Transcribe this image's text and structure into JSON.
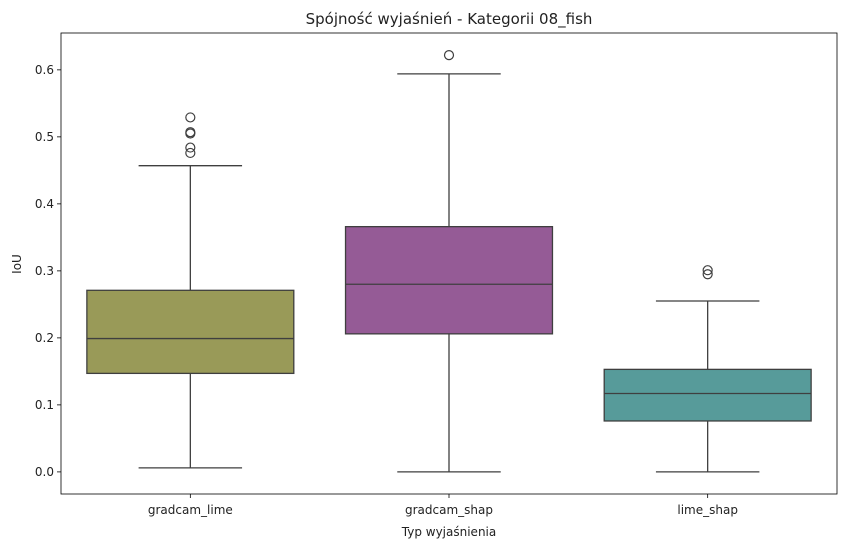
{
  "chart_data": {
    "type": "box",
    "title": "Spójność wyjaśnień - Kategorii 08_fish",
    "xlabel": "Typ wyjaśnienia",
    "ylabel": "IoU",
    "ylim": [
      -0.033,
      0.655
    ],
    "yticks": [
      0.0,
      0.1,
      0.2,
      0.3,
      0.4,
      0.5,
      0.6
    ],
    "ytick_labels": [
      "0.0",
      "0.1",
      "0.2",
      "0.3",
      "0.4",
      "0.5",
      "0.6"
    ],
    "grid": false,
    "categories": [
      "gradcam_lime",
      "gradcam_shap",
      "lime_shap"
    ],
    "boxes": [
      {
        "category": "gradcam_lime",
        "color": "#999A58",
        "whisker_low": 0.006,
        "q1": 0.147,
        "median": 0.199,
        "q3": 0.271,
        "whisker_high": 0.457,
        "outliers": [
          0.476,
          0.484,
          0.505,
          0.507,
          0.529
        ]
      },
      {
        "category": "gradcam_shap",
        "color": "#955B96",
        "whisker_low": 0.0,
        "q1": 0.206,
        "median": 0.28,
        "q3": 0.366,
        "whisker_high": 0.594,
        "outliers": [
          0.622
        ]
      },
      {
        "category": "lime_shap",
        "color": "#579B9A",
        "whisker_low": 0.0,
        "q1": 0.076,
        "median": 0.117,
        "q3": 0.153,
        "whisker_high": 0.255,
        "outliers": [
          0.295,
          0.301
        ]
      }
    ]
  }
}
